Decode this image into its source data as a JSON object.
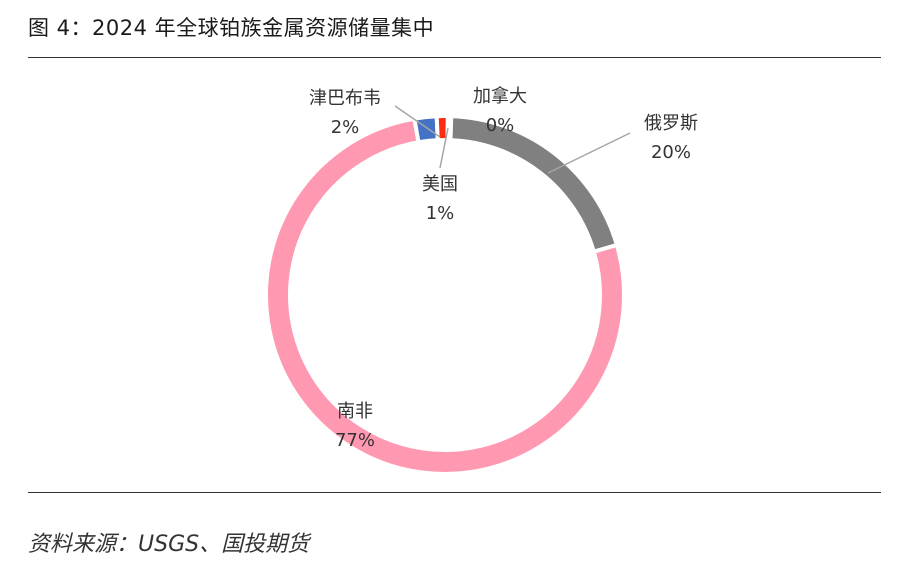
{
  "figure": {
    "title": "图 4：2024 年全球铂族金属资源储量集中",
    "source": "资料来源：USGS、国投期货"
  },
  "chart_data": {
    "type": "pie",
    "variant": "donut",
    "title": "",
    "series": [
      {
        "name": "俄罗斯",
        "label": "俄罗斯",
        "percent_label": "20%",
        "value": 20,
        "color": "#808080"
      },
      {
        "name": "南非",
        "label": "南非",
        "percent_label": "77%",
        "value": 77,
        "color": "#ff99b2"
      },
      {
        "name": "津巴布韦",
        "label": "津巴布韦",
        "percent_label": "2%",
        "value": 2,
        "color": "#4472c4"
      },
      {
        "name": "美国",
        "label": "美国",
        "percent_label": "1%",
        "value": 1,
        "color": "#ff2a12"
      },
      {
        "name": "加拿大",
        "label": "加拿大",
        "percent_label": "0%",
        "value": 0.3,
        "color": "#ffffff"
      }
    ],
    "legend": "none",
    "data_labels": "category and percentage, outside with leader lines"
  }
}
